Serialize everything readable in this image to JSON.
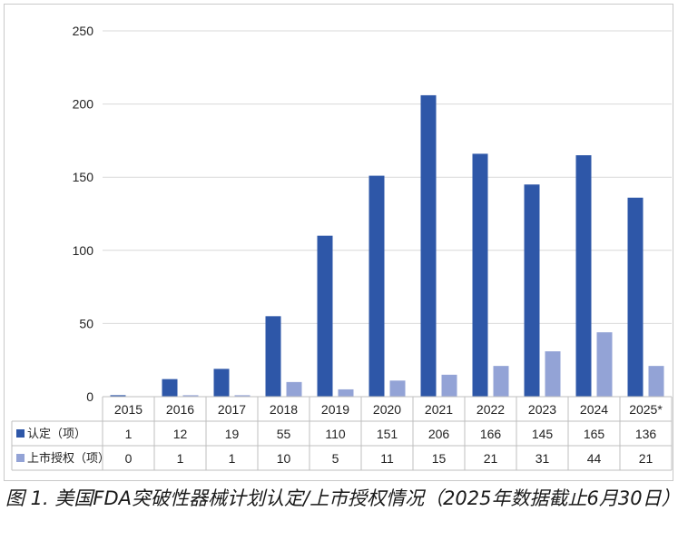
{
  "caption": "图 1. 美国FDA突破性器械计划认定/上市授权情况（2025年数据截止6月30日）",
  "chart_data": {
    "type": "bar",
    "categories": [
      "2015",
      "2016",
      "2017",
      "2018",
      "2019",
      "2020",
      "2021",
      "2022",
      "2023",
      "2024",
      "2025*"
    ],
    "series": [
      {
        "name": "认定（项）",
        "color": "#2e57a8",
        "values": [
          1,
          12,
          19,
          55,
          110,
          151,
          206,
          166,
          145,
          165,
          136
        ]
      },
      {
        "name": "上市授权（项）",
        "color": "#93a3d6",
        "values": [
          0,
          1,
          1,
          10,
          5,
          11,
          15,
          21,
          31,
          44,
          21
        ]
      }
    ],
    "ylim": [
      0,
      250
    ],
    "yticks": [
      "0",
      "50",
      "100",
      "150",
      "200",
      "250"
    ],
    "grid": true,
    "data_table": true
  }
}
